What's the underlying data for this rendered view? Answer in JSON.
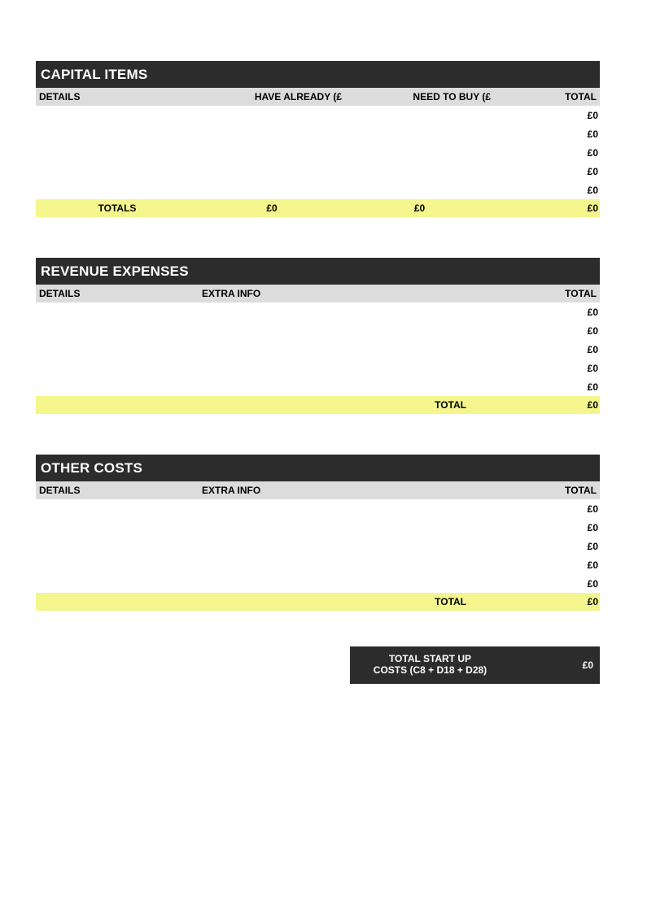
{
  "section1": {
    "title": "CAPITAL ITEMS",
    "columns": [
      "DETAILS",
      "HAVE ALREADY (£",
      "NEED TO BUY (£",
      "TOTAL"
    ],
    "rows": [
      {
        "total": "£0"
      },
      {
        "total": "£0"
      },
      {
        "total": "£0"
      },
      {
        "total": "£0"
      },
      {
        "total": "£0"
      }
    ],
    "totals_row": {
      "label": "TOTALS",
      "have": "£0",
      "need": "£0",
      "total": "£0"
    }
  },
  "section2": {
    "title": "REVENUE EXPENSES",
    "columns": [
      "DETAILS",
      "EXTRA INFO",
      "TOTAL"
    ],
    "rows": [
      {
        "total": "£0"
      },
      {
        "total": "£0"
      },
      {
        "total": "£0"
      },
      {
        "total": "£0"
      },
      {
        "total": "£0"
      }
    ],
    "totals_row": {
      "label": "TOTAL",
      "total": "£0"
    }
  },
  "section3": {
    "title": "OTHER COSTS",
    "columns": [
      "DETAILS",
      "EXTRA INFO",
      "TOTAL"
    ],
    "rows": [
      {
        "total": "£0"
      },
      {
        "total": "£0"
      },
      {
        "total": "£0"
      },
      {
        "total": "£0"
      },
      {
        "total": "£0"
      }
    ],
    "totals_row": {
      "label": "TOTAL",
      "total": "£0"
    }
  },
  "grand_total": {
    "label": "TOTAL START UP COSTS (C8 + D18 + D28)",
    "value": "£0"
  },
  "colors": {
    "header_bg": "#2c2c2c",
    "header_fg": "#ffffff",
    "subheader_bg": "#dcdcdc",
    "highlight_bg": "#f4f68d",
    "page_bg": "#ffffff",
    "text": "#000000"
  }
}
